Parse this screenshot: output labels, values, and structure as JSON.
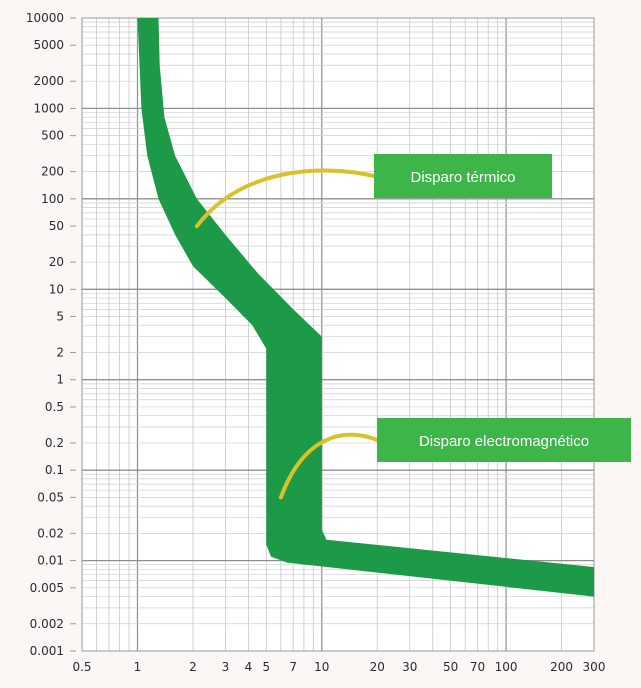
{
  "chart_data": {
    "type": "area",
    "xscale": "log",
    "yscale": "log",
    "xlim": [
      0.5,
      300
    ],
    "ylim": [
      0.001,
      10000
    ],
    "x_ticks": [
      0.5,
      1,
      2,
      3,
      4,
      5,
      7,
      10,
      20,
      30,
      50,
      70,
      100,
      200,
      300
    ],
    "x_tick_labels": [
      "0.5",
      "1",
      "2",
      "3",
      "4",
      "5",
      "7",
      "10",
      "20",
      "30",
      "50",
      "70",
      "100",
      "200",
      "300"
    ],
    "y_ticks": [
      10000,
      5000,
      2000,
      1000,
      500,
      200,
      100,
      50,
      20,
      10,
      5,
      2,
      1,
      0.5,
      0.2,
      0.1,
      0.05,
      0.02,
      0.01,
      0.005,
      0.002,
      0.001
    ],
    "y_tick_labels": [
      "10000",
      "5000",
      "2000",
      "1000",
      "500",
      "200",
      "100",
      "50",
      "20",
      "10",
      "5",
      "2",
      "1",
      "0.5",
      "0.2",
      "0.1",
      "0.05",
      "0.02",
      "0.01",
      "0.005",
      "0.002",
      "0.001"
    ],
    "grid": true,
    "band_color": "#1c9a48",
    "band_left_edge": [
      {
        "x": 1.0,
        "y": 10000
      },
      {
        "x": 1.05,
        "y": 1000
      },
      {
        "x": 1.13,
        "y": 300
      },
      {
        "x": 1.3,
        "y": 100
      },
      {
        "x": 1.6,
        "y": 40
      },
      {
        "x": 2.0,
        "y": 18
      },
      {
        "x": 3.0,
        "y": 8
      },
      {
        "x": 4.2,
        "y": 4
      },
      {
        "x": 5.0,
        "y": 2.2
      },
      {
        "x": 5.0,
        "y": 0.015
      },
      {
        "x": 5.3,
        "y": 0.011
      },
      {
        "x": 6.5,
        "y": 0.0095
      },
      {
        "x": 300,
        "y": 0.004
      }
    ],
    "band_right_edge": [
      {
        "x": 1.3,
        "y": 10000
      },
      {
        "x": 1.32,
        "y": 3000
      },
      {
        "x": 1.4,
        "y": 800
      },
      {
        "x": 1.6,
        "y": 300
      },
      {
        "x": 2.1,
        "y": 100
      },
      {
        "x": 3.0,
        "y": 40
      },
      {
        "x": 4.5,
        "y": 15
      },
      {
        "x": 7.0,
        "y": 6
      },
      {
        "x": 10.0,
        "y": 3
      },
      {
        "x": 10.0,
        "y": 0.022
      },
      {
        "x": 10.6,
        "y": 0.017
      },
      {
        "x": 300,
        "y": 0.0085
      }
    ],
    "annotations": [
      {
        "text": "Disparo térmico",
        "color": "#3db549",
        "line_color": "#d8c22c",
        "target": {
          "x": 2.1,
          "y": 50
        }
      },
      {
        "text": "Disparo electromagnético",
        "color": "#3db549",
        "line_color": "#d8c22c",
        "target": {
          "x": 6.0,
          "y": 0.05
        }
      }
    ]
  }
}
